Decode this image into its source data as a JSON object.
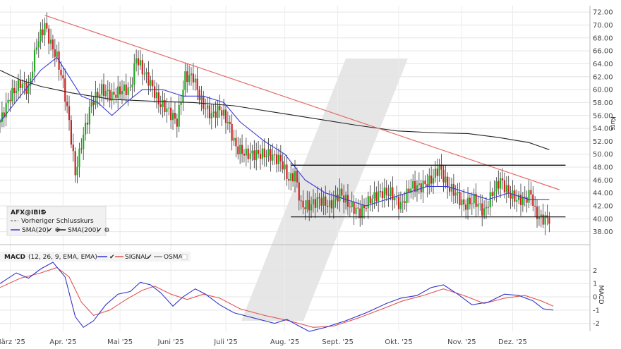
{
  "chart_data": [
    {
      "type": "candlestick",
      "panel": "price",
      "symbol": "AFX@IBIS",
      "ylabel": "Kurs",
      "ylim": [
        36,
        73
      ],
      "yticks": [
        38,
        40,
        42,
        44,
        46,
        48,
        50,
        52,
        54,
        56,
        58,
        60,
        62,
        64,
        66,
        68,
        70,
        72
      ],
      "xlim": [
        0,
        290
      ],
      "x_ticks": [
        {
          "label": "März '25",
          "x": 5
        },
        {
          "label": "Apr. '25",
          "x": 31
        },
        {
          "label": "Mai '25",
          "x": 59
        },
        {
          "label": "Juni '25",
          "x": 84
        },
        {
          "label": "Juli '25",
          "x": 111
        },
        {
          "label": "Aug. '25",
          "x": 140
        },
        {
          "label": "Sept. '25",
          "x": 166
        },
        {
          "label": "Okt. '25",
          "x": 196
        },
        {
          "label": "Nov. '25",
          "x": 227
        },
        {
          "label": "Dez. '25",
          "x": 252
        }
      ],
      "closes": [
        {
          "x": 0,
          "y": 55
        },
        {
          "x": 5,
          "y": 59
        },
        {
          "x": 10,
          "y": 61
        },
        {
          "x": 14,
          "y": 60
        },
        {
          "x": 18,
          "y": 67
        },
        {
          "x": 22,
          "y": 70
        },
        {
          "x": 25,
          "y": 67
        },
        {
          "x": 28,
          "y": 65
        },
        {
          "x": 31,
          "y": 61
        },
        {
          "x": 34,
          "y": 55
        },
        {
          "x": 37,
          "y": 47
        },
        {
          "x": 41,
          "y": 53
        },
        {
          "x": 45,
          "y": 58
        },
        {
          "x": 50,
          "y": 60
        },
        {
          "x": 55,
          "y": 59
        },
        {
          "x": 60,
          "y": 60
        },
        {
          "x": 64,
          "y": 60
        },
        {
          "x": 67,
          "y": 65
        },
        {
          "x": 70,
          "y": 63
        },
        {
          "x": 74,
          "y": 61
        },
        {
          "x": 78,
          "y": 58
        },
        {
          "x": 82,
          "y": 57
        },
        {
          "x": 87,
          "y": 55
        },
        {
          "x": 91,
          "y": 62
        },
        {
          "x": 95,
          "y": 62
        },
        {
          "x": 99,
          "y": 58
        },
        {
          "x": 104,
          "y": 56
        },
        {
          "x": 108,
          "y": 57
        },
        {
          "x": 112,
          "y": 55
        },
        {
          "x": 116,
          "y": 51
        },
        {
          "x": 121,
          "y": 50
        },
        {
          "x": 126,
          "y": 50
        },
        {
          "x": 132,
          "y": 50
        },
        {
          "x": 138,
          "y": 49
        },
        {
          "x": 142,
          "y": 46
        },
        {
          "x": 145,
          "y": 47
        },
        {
          "x": 148,
          "y": 42
        },
        {
          "x": 152,
          "y": 42
        },
        {
          "x": 157,
          "y": 43
        },
        {
          "x": 162,
          "y": 42
        },
        {
          "x": 167,
          "y": 44
        },
        {
          "x": 172,
          "y": 42
        },
        {
          "x": 177,
          "y": 41
        },
        {
          "x": 182,
          "y": 43
        },
        {
          "x": 187,
          "y": 44
        },
        {
          "x": 192,
          "y": 44
        },
        {
          "x": 197,
          "y": 42
        },
        {
          "x": 202,
          "y": 45
        },
        {
          "x": 207,
          "y": 45
        },
        {
          "x": 212,
          "y": 46
        },
        {
          "x": 216,
          "y": 48
        },
        {
          "x": 220,
          "y": 45
        },
        {
          "x": 224,
          "y": 44
        },
        {
          "x": 228,
          "y": 42
        },
        {
          "x": 233,
          "y": 43
        },
        {
          "x": 238,
          "y": 41
        },
        {
          "x": 242,
          "y": 44
        },
        {
          "x": 246,
          "y": 46
        },
        {
          "x": 250,
          "y": 44
        },
        {
          "x": 254,
          "y": 43
        },
        {
          "x": 258,
          "y": 43
        },
        {
          "x": 261,
          "y": 44
        },
        {
          "x": 263,
          "y": 41
        },
        {
          "x": 266,
          "y": 40
        },
        {
          "x": 270,
          "y": 40
        }
      ],
      "sma20": [
        {
          "x": 0,
          "y": 55
        },
        {
          "x": 10,
          "y": 59
        },
        {
          "x": 20,
          "y": 63
        },
        {
          "x": 28,
          "y": 65
        },
        {
          "x": 34,
          "y": 62
        },
        {
          "x": 40,
          "y": 59
        },
        {
          "x": 48,
          "y": 58
        },
        {
          "x": 55,
          "y": 56
        },
        {
          "x": 62,
          "y": 58
        },
        {
          "x": 70,
          "y": 60
        },
        {
          "x": 80,
          "y": 60
        },
        {
          "x": 90,
          "y": 59
        },
        {
          "x": 100,
          "y": 59
        },
        {
          "x": 110,
          "y": 58
        },
        {
          "x": 118,
          "y": 55
        },
        {
          "x": 130,
          "y": 52
        },
        {
          "x": 140,
          "y": 50
        },
        {
          "x": 150,
          "y": 46
        },
        {
          "x": 160,
          "y": 44
        },
        {
          "x": 170,
          "y": 43
        },
        {
          "x": 180,
          "y": 42
        },
        {
          "x": 190,
          "y": 43
        },
        {
          "x": 200,
          "y": 44
        },
        {
          "x": 210,
          "y": 45
        },
        {
          "x": 220,
          "y": 45
        },
        {
          "x": 230,
          "y": 44
        },
        {
          "x": 240,
          "y": 43
        },
        {
          "x": 250,
          "y": 44
        },
        {
          "x": 260,
          "y": 43
        },
        {
          "x": 270,
          "y": 43
        }
      ],
      "sma200": [
        {
          "x": 0,
          "y": 63
        },
        {
          "x": 10,
          "y": 61.5
        },
        {
          "x": 20,
          "y": 60.5
        },
        {
          "x": 35,
          "y": 59.5
        },
        {
          "x": 55,
          "y": 58.5
        },
        {
          "x": 75,
          "y": 58.2
        },
        {
          "x": 95,
          "y": 58
        },
        {
          "x": 115,
          "y": 57.5
        },
        {
          "x": 135,
          "y": 56.5
        },
        {
          "x": 155,
          "y": 55.5
        },
        {
          "x": 175,
          "y": 54.5
        },
        {
          "x": 195,
          "y": 53.6
        },
        {
          "x": 215,
          "y": 53.3
        },
        {
          "x": 230,
          "y": 53.2
        },
        {
          "x": 245,
          "y": 52.6
        },
        {
          "x": 260,
          "y": 51.8
        },
        {
          "x": 270,
          "y": 50.7
        }
      ],
      "trendline": [
        {
          "x": 22,
          "y": 71.5
        },
        {
          "x": 275,
          "y": 44.5
        }
      ],
      "horizontal_lines": [
        {
          "y": 48.3,
          "x_start": 143,
          "x_end": 278
        },
        {
          "y": 40.3,
          "x_start": 143,
          "x_end": 278
        }
      ],
      "legend": [
        {
          "name": "AFX@IBIS",
          "color": "#222222"
        },
        {
          "name": "Vorheriger Schlusskurs",
          "color": "#555555",
          "dashed": true
        },
        {
          "name": "SMA(20)",
          "color": "#3a3ad6"
        },
        {
          "name": "SMA(200)",
          "color": "#222222"
        }
      ],
      "legend_placement": "bottom-left",
      "grid": true
    },
    {
      "type": "line",
      "panel": "indicator",
      "title": "MACD",
      "params": "(12, 26, 9, EMA, EMA)",
      "ylabel": "MACD",
      "ylim": [
        -2.6,
        2.6
      ],
      "yticks": [
        -2,
        -1,
        0,
        1,
        2
      ],
      "series": [
        {
          "name": "MACD",
          "color": "#3333cc",
          "points": [
            {
              "x": 0,
              "y": 1.0
            },
            {
              "x": 8,
              "y": 1.8
            },
            {
              "x": 14,
              "y": 1.4
            },
            {
              "x": 20,
              "y": 2.1
            },
            {
              "x": 26,
              "y": 2.6
            },
            {
              "x": 32,
              "y": 1.5
            },
            {
              "x": 37,
              "y": -1.5
            },
            {
              "x": 41,
              "y": -2.3
            },
            {
              "x": 46,
              "y": -1.8
            },
            {
              "x": 52,
              "y": -0.6
            },
            {
              "x": 58,
              "y": 0.2
            },
            {
              "x": 64,
              "y": 0.4
            },
            {
              "x": 69,
              "y": 1.1
            },
            {
              "x": 74,
              "y": 0.9
            },
            {
              "x": 79,
              "y": 0.3
            },
            {
              "x": 85,
              "y": -0.7
            },
            {
              "x": 90,
              "y": 0.0
            },
            {
              "x": 96,
              "y": 0.6
            },
            {
              "x": 101,
              "y": 0.2
            },
            {
              "x": 108,
              "y": -0.6
            },
            {
              "x": 115,
              "y": -1.2
            },
            {
              "x": 125,
              "y": -1.6
            },
            {
              "x": 135,
              "y": -2.0
            },
            {
              "x": 141,
              "y": -1.7
            },
            {
              "x": 147,
              "y": -2.2
            },
            {
              "x": 152,
              "y": -2.6
            },
            {
              "x": 160,
              "y": -2.3
            },
            {
              "x": 170,
              "y": -1.8
            },
            {
              "x": 180,
              "y": -1.2
            },
            {
              "x": 190,
              "y": -0.5
            },
            {
              "x": 197,
              "y": -0.1
            },
            {
              "x": 205,
              "y": 0.1
            },
            {
              "x": 212,
              "y": 0.7
            },
            {
              "x": 218,
              "y": 0.9
            },
            {
              "x": 225,
              "y": 0.2
            },
            {
              "x": 232,
              "y": -0.6
            },
            {
              "x": 240,
              "y": -0.4
            },
            {
              "x": 248,
              "y": 0.2
            },
            {
              "x": 255,
              "y": 0.1
            },
            {
              "x": 262,
              "y": -0.3
            },
            {
              "x": 267,
              "y": -0.9
            },
            {
              "x": 272,
              "y": -1.0
            }
          ]
        },
        {
          "name": "SIGNAL",
          "color": "#e05555",
          "points": [
            {
              "x": 0,
              "y": 0.7
            },
            {
              "x": 10,
              "y": 1.4
            },
            {
              "x": 20,
              "y": 1.8
            },
            {
              "x": 28,
              "y": 2.2
            },
            {
              "x": 34,
              "y": 1.5
            },
            {
              "x": 40,
              "y": -0.4
            },
            {
              "x": 46,
              "y": -1.4
            },
            {
              "x": 54,
              "y": -1.0
            },
            {
              "x": 62,
              "y": -0.2
            },
            {
              "x": 70,
              "y": 0.5
            },
            {
              "x": 76,
              "y": 0.8
            },
            {
              "x": 84,
              "y": 0.2
            },
            {
              "x": 92,
              "y": -0.2
            },
            {
              "x": 100,
              "y": 0.2
            },
            {
              "x": 108,
              "y": -0.1
            },
            {
              "x": 118,
              "y": -0.9
            },
            {
              "x": 130,
              "y": -1.4
            },
            {
              "x": 142,
              "y": -1.8
            },
            {
              "x": 154,
              "y": -2.3
            },
            {
              "x": 164,
              "y": -2.2
            },
            {
              "x": 176,
              "y": -1.6
            },
            {
              "x": 188,
              "y": -0.9
            },
            {
              "x": 198,
              "y": -0.3
            },
            {
              "x": 208,
              "y": 0.1
            },
            {
              "x": 218,
              "y": 0.6
            },
            {
              "x": 228,
              "y": 0.1
            },
            {
              "x": 238,
              "y": -0.5
            },
            {
              "x": 248,
              "y": -0.1
            },
            {
              "x": 258,
              "y": 0.1
            },
            {
              "x": 266,
              "y": -0.3
            },
            {
              "x": 272,
              "y": -0.7
            }
          ]
        },
        {
          "name": "OSMA",
          "color": "#888888",
          "points": []
        }
      ],
      "grid": true
    }
  ]
}
